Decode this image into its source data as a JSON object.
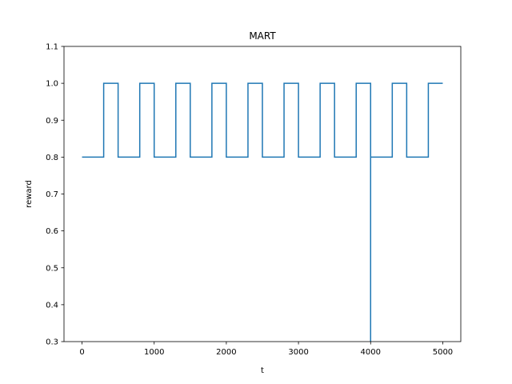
{
  "chart_data": {
    "type": "line",
    "title": "MART",
    "xlabel": "t",
    "ylabel": "reward",
    "xlim": [
      -250,
      5250
    ],
    "ylim": [
      0.3,
      1.1
    ],
    "xticks": [
      0,
      1000,
      2000,
      3000,
      4000,
      5000
    ],
    "yticks": [
      0.3,
      0.4,
      0.5,
      0.6,
      0.7,
      0.8,
      0.9,
      1.0,
      1.1
    ],
    "grid": false,
    "series": [
      {
        "color": "#1f77b4",
        "x": [
          0,
          300,
          300,
          500,
          500,
          800,
          800,
          1000,
          1000,
          1300,
          1300,
          1500,
          1500,
          1800,
          1800,
          2000,
          2000,
          2300,
          2300,
          2500,
          2500,
          2800,
          2800,
          3000,
          3000,
          3300,
          3300,
          3500,
          3500,
          3800,
          3800,
          4000,
          4000,
          4000,
          4300,
          4300,
          4500,
          4500,
          4800,
          4800,
          5000
        ],
        "y": [
          0.8,
          0.8,
          1.0,
          1.0,
          0.8,
          0.8,
          1.0,
          1.0,
          0.8,
          0.8,
          1.0,
          1.0,
          0.8,
          0.8,
          1.0,
          1.0,
          0.8,
          0.8,
          1.0,
          1.0,
          0.8,
          0.8,
          1.0,
          1.0,
          0.8,
          0.8,
          1.0,
          1.0,
          0.8,
          0.8,
          1.0,
          1.0,
          0.3,
          0.8,
          0.8,
          1.0,
          1.0,
          0.8,
          0.8,
          1.0,
          1.0
        ]
      }
    ]
  }
}
